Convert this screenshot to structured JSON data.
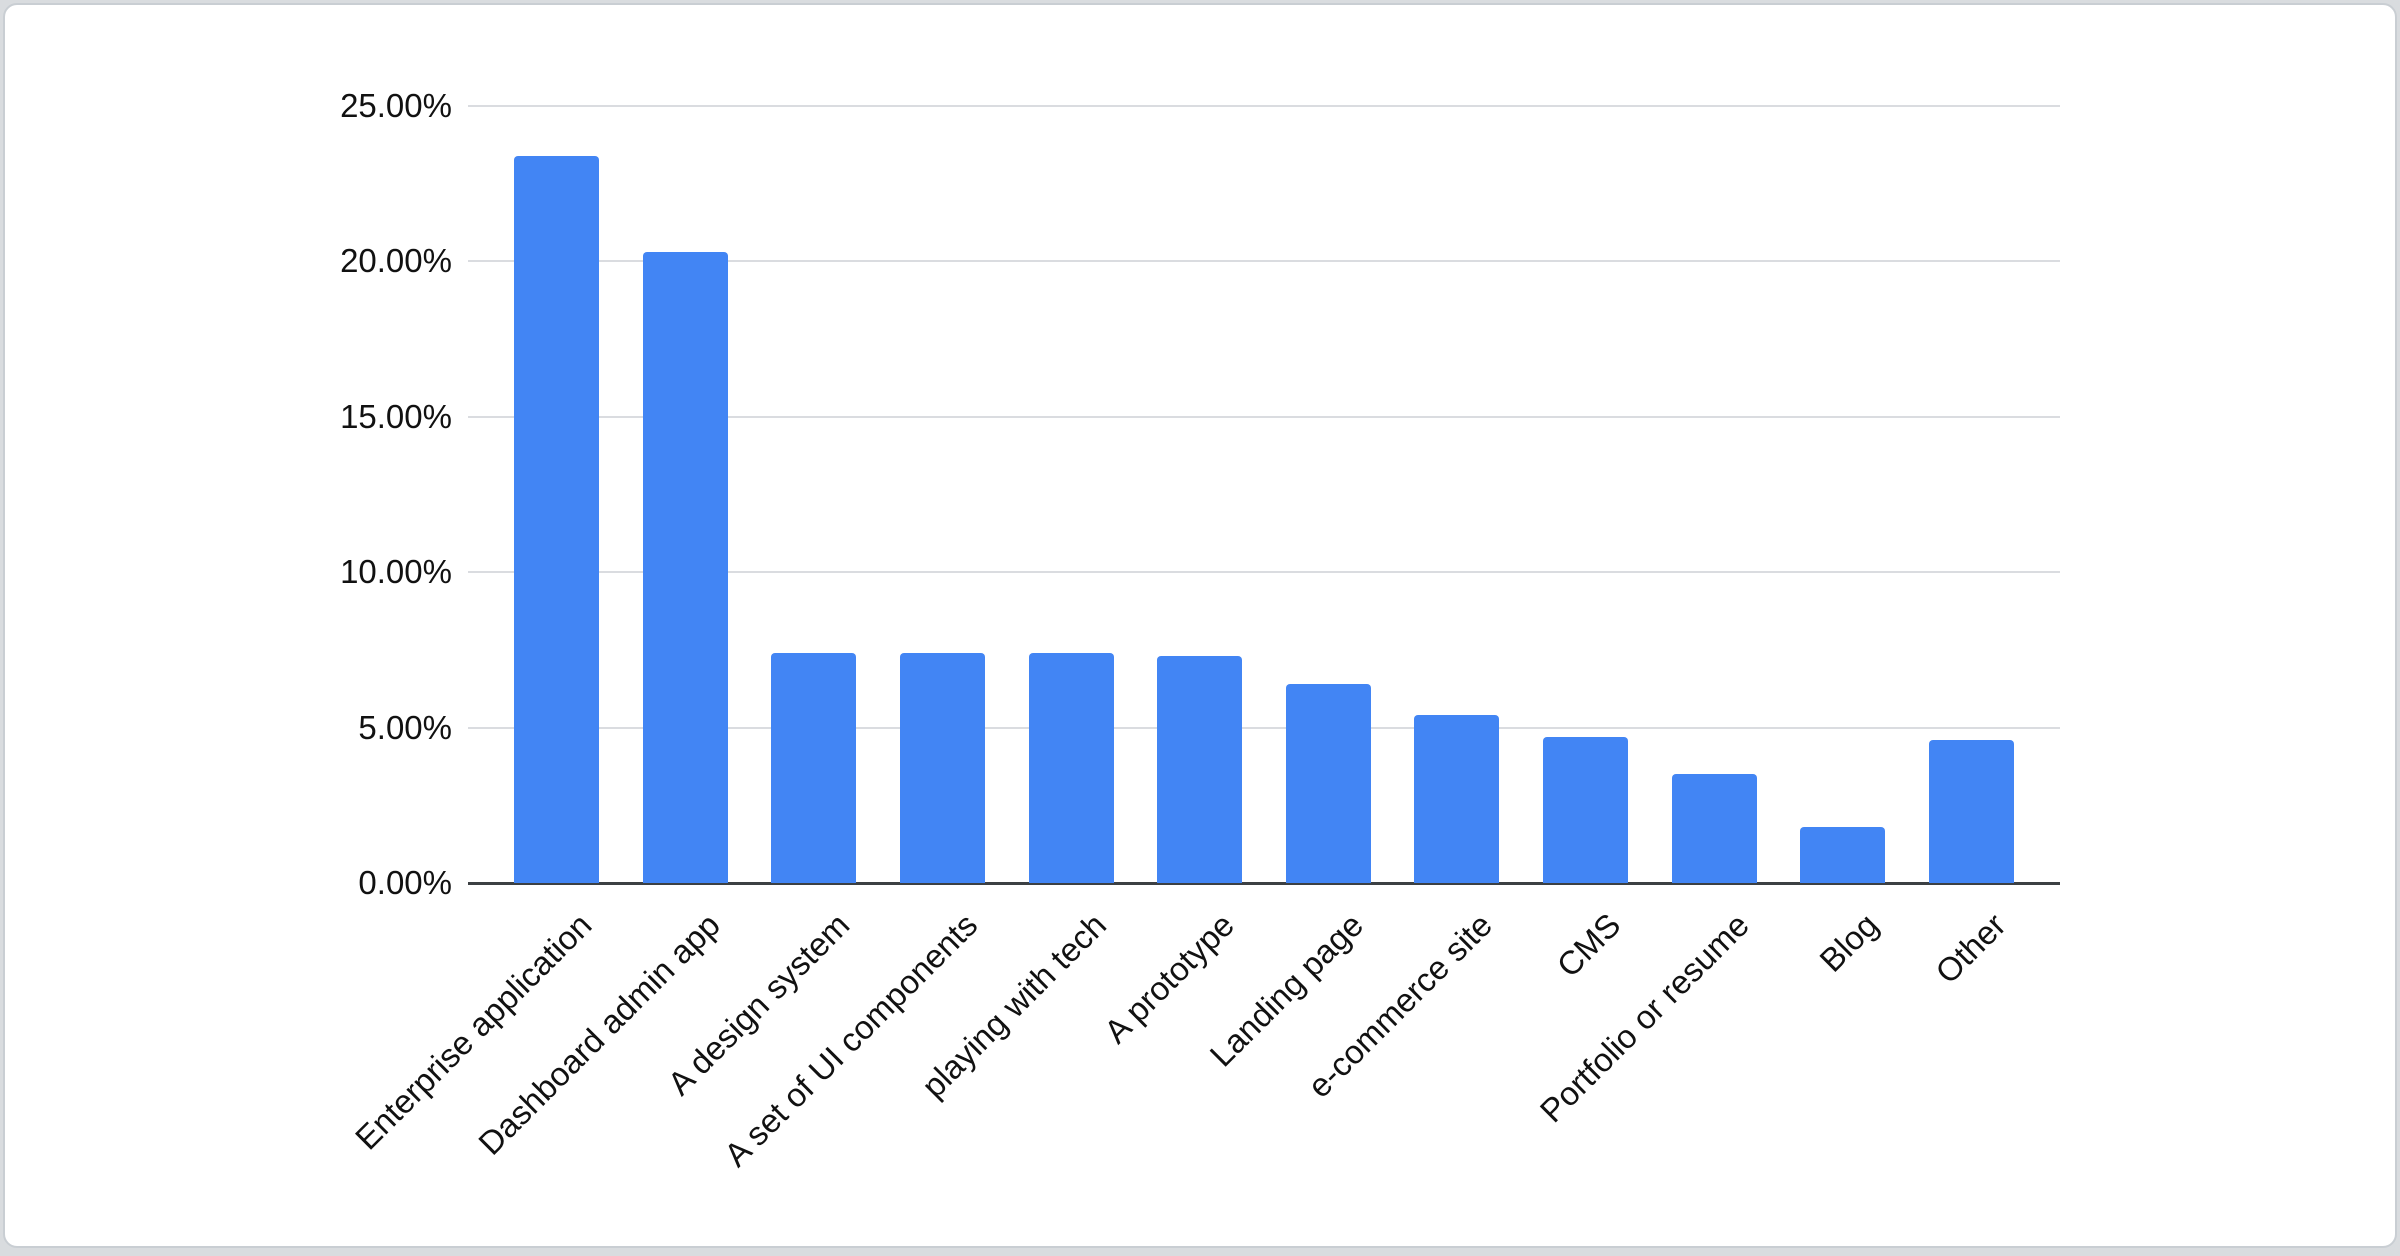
{
  "page": {
    "background_color": "#d9dcdf"
  },
  "card": {
    "background_color": "#ffffff",
    "border_color": "#c9ced3"
  },
  "chart_data": {
    "type": "bar",
    "title": "",
    "xlabel": "",
    "ylabel": "",
    "categories": [
      "Enterprise application",
      "Dashboard admin app",
      "A design system",
      "A set of UI components",
      "playing with tech",
      "A prototype",
      "Landing page",
      "e-commerce site",
      "CMS",
      "Portfolio or resume",
      "Blog",
      "Other"
    ],
    "values": [
      23.4,
      20.3,
      7.4,
      7.4,
      7.4,
      7.3,
      6.4,
      5.4,
      4.7,
      3.5,
      1.8,
      4.6
    ],
    "value_unit": "%",
    "ylim": [
      0,
      25
    ],
    "y_tick_values": [
      0,
      5,
      10,
      15,
      20,
      25
    ],
    "y_tick_labels": [
      "0.00%",
      "5.00%",
      "10.00%",
      "15.00%",
      "20.00%",
      "25.00%"
    ],
    "x_label_rotation_deg": -45,
    "grid": true,
    "legend_position": "none",
    "colors": {
      "bar": "#4285f4",
      "gridline": "#dadce0",
      "axis_line": "#3c4043",
      "label_text": "#111111"
    }
  }
}
